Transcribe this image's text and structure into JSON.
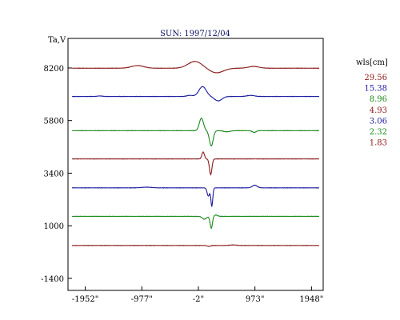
{
  "chart_data": {
    "type": "line",
    "title": "SUN: 1997/12/04",
    "ylabel": "Ta,V",
    "legend_title": "wls[cm]",
    "legend_placement": "right",
    "xlim": [
      -2250,
      2150
    ],
    "ylim": [
      -1950,
      9550
    ],
    "x_ticks": [
      {
        "value": -1952,
        "label": "-1952\""
      },
      {
        "value": -977,
        "label": "-977\""
      },
      {
        "value": -2,
        "label": "-2\""
      },
      {
        "value": 973,
        "label": "973\""
      },
      {
        "value": 1948,
        "label": "1948\""
      }
    ],
    "y_ticks": [
      {
        "value": 8200,
        "label": "8200"
      },
      {
        "value": 5800,
        "label": "5800"
      },
      {
        "value": 3400,
        "label": "3400"
      },
      {
        "value": 1000,
        "label": "1000"
      },
      {
        "value": -1400,
        "label": "-1400"
      }
    ],
    "grid": false,
    "series": [
      {
        "name": "29.56",
        "color": "#8b1a1a",
        "baseline": 8190,
        "features": [
          {
            "x": -1050,
            "a": 120,
            "w": 150
          },
          {
            "x": -60,
            "a": 310,
            "w": 170
          },
          {
            "x": 310,
            "a": -210,
            "w": 170
          },
          {
            "x": 950,
            "a": 80,
            "w": 130
          }
        ]
      },
      {
        "name": "15.38",
        "color": "#1a1aa0",
        "baseline": 6900,
        "features": [
          {
            "x": -1700,
            "a": 25,
            "w": 60
          },
          {
            "x": -150,
            "a": 50,
            "w": 70
          },
          {
            "x": 70,
            "a": 450,
            "w": 90
          },
          {
            "x": 340,
            "a": -200,
            "w": 90
          },
          {
            "x": 900,
            "a": 50,
            "w": 90
          }
        ]
      },
      {
        "name": "8.96",
        "color": "#1a8a1a",
        "baseline": 5340,
        "features": [
          {
            "x": 50,
            "a": 570,
            "w": 50
          },
          {
            "x": 220,
            "a": -700,
            "w": 45
          },
          {
            "x": 490,
            "a": -50,
            "w": 80
          },
          {
            "x": 960,
            "a": -80,
            "w": 45
          }
        ]
      },
      {
        "name": "4.93",
        "color": "#8b1a1a",
        "baseline": 4050,
        "features": [
          {
            "x": 80,
            "a": 320,
            "w": 30
          },
          {
            "x": 210,
            "a": -720,
            "w": 30
          }
        ]
      },
      {
        "name": "3.06",
        "color": "#1a1aa0",
        "baseline": 2730,
        "features": [
          {
            "x": -900,
            "a": 30,
            "w": 120
          },
          {
            "x": 170,
            "a": -380,
            "w": 30
          },
          {
            "x": 230,
            "a": -850,
            "w": 22
          },
          {
            "x": 970,
            "a": 120,
            "w": 60
          }
        ]
      },
      {
        "name": "2.32",
        "color": "#1a8a1a",
        "baseline": 1430,
        "features": [
          {
            "x": 100,
            "a": -130,
            "w": 50
          },
          {
            "x": 220,
            "a": -550,
            "w": 28
          },
          {
            "x": 300,
            "a": 60,
            "w": 40
          }
        ]
      },
      {
        "name": "1.83",
        "color": "#8b1a1a",
        "baseline": 100,
        "features": [
          {
            "x": 180,
            "a": -40,
            "w": 40
          },
          {
            "x": 600,
            "a": 25,
            "w": 80
          }
        ]
      }
    ]
  }
}
